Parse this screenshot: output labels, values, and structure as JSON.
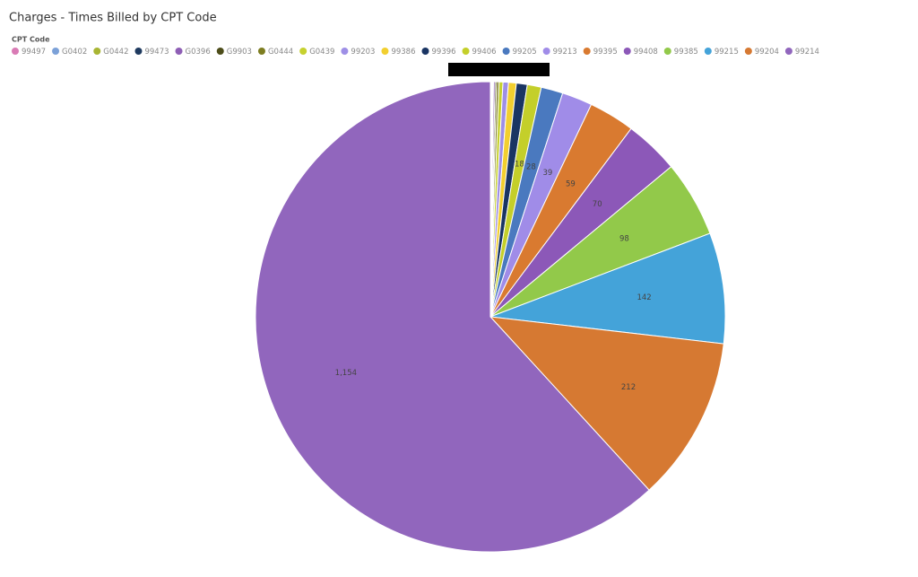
{
  "chart_data": {
    "type": "pie",
    "title": "Charges - Times Billed by CPT Code",
    "legend_title": "CPT Code",
    "categories": [
      "99497",
      "G0402",
      "G0442",
      "99473",
      "G0396",
      "G9903",
      "G0444",
      "G0439",
      "99203",
      "99386",
      "99396",
      "99406",
      "99205",
      "99213",
      "99395",
      "99408",
      "99385",
      "99215",
      "99204",
      "99214"
    ],
    "values": [
      1,
      1,
      1,
      1,
      2,
      2,
      3,
      5,
      7,
      10,
      14,
      18,
      28,
      39,
      59,
      70,
      98,
      142,
      212,
      1154
    ],
    "value_labels": [
      null,
      null,
      null,
      null,
      null,
      null,
      null,
      null,
      null,
      null,
      null,
      "18",
      "28",
      "39",
      "59",
      "70",
      "98",
      "142",
      "212",
      "1,154"
    ],
    "colors": [
      "#d97bb5",
      "#7ca1d8",
      "#a8b533",
      "#1f3a5f",
      "#8e5eb5",
      "#4d4d1a",
      "#7d7d20",
      "#c6d12f",
      "#9e8fe6",
      "#f2cf2f",
      "#1a3563",
      "#c4cf2a",
      "#4a79bf",
      "#a08ce8",
      "#d97a30",
      "#8c58b8",
      "#92c94a",
      "#44a3d9",
      "#d67932",
      "#9166bd"
    ],
    "legend_position": "top-left"
  }
}
